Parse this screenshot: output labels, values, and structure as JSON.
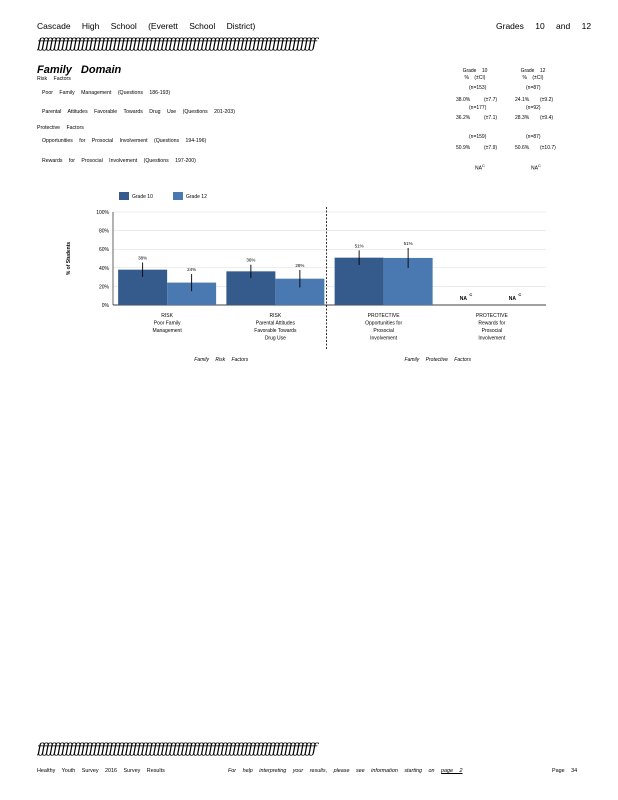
{
  "header": {
    "school": "Cascade High School (Everett School District)",
    "grades": "Grades 10 and 12"
  },
  "rule_glyphs": "ƒƒƒƒƒƒƒƒƒƒƒƒƒƒƒƒƒƒƒƒƒƒƒƒƒƒƒƒƒƒƒƒƒƒƒƒƒƒƒƒƒƒƒƒƒƒƒƒƒƒƒƒƒƒƒƒƒƒƒƒƒƒƒƒƒƒƒƒƒƒ",
  "section": {
    "title": "Family Domain",
    "risk_heading": "Risk Factors",
    "protective_heading": "Protective Factors"
  },
  "table": {
    "col10": {
      "grade": "Grade 10",
      "unit": "% (±CI)"
    },
    "col12": {
      "grade": "Grade 12",
      "unit": "% (±CI)"
    },
    "rows": [
      {
        "label": "Poor Family Management (Questions 186-193)",
        "n10": "(n=153)",
        "v10": "38.0%",
        "ci10": "(±7.7)",
        "n12": "(n=87)",
        "v12": "24.1%",
        "ci12": "(±9.2)"
      },
      {
        "label": "Parental Attitudes Favorable Towards Drug Use (Questions 201-203)",
        "n10": "(n=177)",
        "v10": "36.2%",
        "ci10": "(±7.1)",
        "n12": "(n=92)",
        "v12": "28.3%",
        "ci12": "(±9.4)"
      },
      {
        "label": "Opportunities for Prosocial Involvement (Questions 194-196)",
        "n10": "(n=159)",
        "v10": "50.9%",
        "ci10": "(±7.9)",
        "n12": "(n=87)",
        "v12": "50.6%",
        "ci12": "(±10.7)"
      },
      {
        "label": "Rewards for Prosocial Involvement (Questions 197-200)",
        "v10": "NA",
        "sup10": "C",
        "v12": "NA",
        "sup12": "C"
      }
    ]
  },
  "chart_data": {
    "type": "bar",
    "ylabel": "% of Students",
    "ylim": [
      0,
      100
    ],
    "yticks": [
      "0%",
      "20%",
      "40%",
      "60%",
      "80%",
      "100%"
    ],
    "legend_position": "top-left",
    "colors": {
      "grade10": "#355b8c",
      "grade12": "#4a78b0"
    },
    "categories": [
      "RISK Poor Family Management",
      "RISK Parental Attitudes Favorable Towards Drug Use",
      "PROTECTIVE Opportunities for Prosocial Involvement",
      "PROTECTIVE Rewards for Prosocial Involvement"
    ],
    "category_lines": [
      [
        "RISK",
        "Poor Family",
        "Management"
      ],
      [
        "RISK",
        "Parental Attitudes",
        "Favorable Towards",
        "Drug Use"
      ],
      [
        "PROTECTIVE",
        "Opportunities for",
        "Prosocial",
        "Involvement"
      ],
      [
        "PROTECTIVE",
        "Rewards for",
        "Prosocial",
        "Involvement"
      ]
    ],
    "series": [
      {
        "name": "Grade 10",
        "values": [
          38.0,
          36.2,
          50.9,
          null
        ],
        "ci": [
          7.7,
          7.1,
          7.9,
          null
        ],
        "labels": [
          "38%",
          "36%",
          "51%",
          "NA"
        ]
      },
      {
        "name": "Grade 12",
        "values": [
          24.1,
          28.3,
          50.6,
          null
        ],
        "ci": [
          9.2,
          9.4,
          10.7,
          null
        ],
        "labels": [
          "24%",
          "28%",
          "51%",
          "NA"
        ]
      }
    ],
    "na_superscript": "C",
    "group_labels": [
      "Family Risk Factors",
      "Family Protective Factors"
    ]
  },
  "footer": {
    "left": "Healthy Youth Survey 2016 Survey Results",
    "middle_prefix": "For help interpreting your results, please see information starting on",
    "link": "page 2",
    "page": "Page 34"
  }
}
